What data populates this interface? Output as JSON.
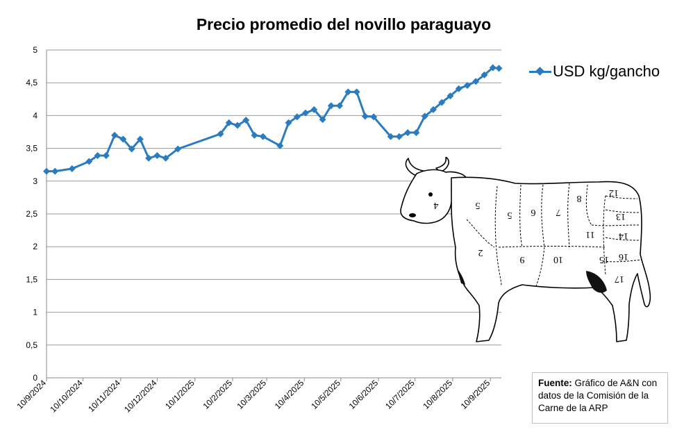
{
  "chart_data": {
    "type": "line",
    "title": "Precio promedio del novillo paraguayo",
    "xlabel": "",
    "ylabel": "",
    "ylim": [
      0,
      5
    ],
    "y_ticks": [
      "0",
      "0,5",
      "1",
      "1,5",
      "2",
      "2,5",
      "3",
      "3,5",
      "4",
      "4,5",
      "5"
    ],
    "x_ticks": [
      "10/9/2024",
      "10/10/2024",
      "10/11/2024",
      "10/12/2024",
      "10/1/2025",
      "10/2/2025",
      "10/3/2025",
      "10/4/2025",
      "10/5/2025",
      "10/6/2025",
      "10/7/2025",
      "10/8/2025",
      "10/9/2025"
    ],
    "grid": "horizontal",
    "legend_position": "right",
    "color": "#2a7bbf",
    "series": [
      {
        "name": "USD kg/gancho",
        "points": [
          [
            "2024-09-10",
            3.15
          ],
          [
            "2024-09-17",
            3.15
          ],
          [
            "2024-10-01",
            3.19
          ],
          [
            "2024-10-15",
            3.3
          ],
          [
            "2024-10-22",
            3.39
          ],
          [
            "2024-10-29",
            3.39
          ],
          [
            "2024-11-05",
            3.7
          ],
          [
            "2024-11-12",
            3.64
          ],
          [
            "2024-11-19",
            3.49
          ],
          [
            "2024-11-26",
            3.64
          ],
          [
            "2024-12-03",
            3.35
          ],
          [
            "2024-12-10",
            3.39
          ],
          [
            "2024-12-17",
            3.35
          ],
          [
            "2024-12-27",
            3.49
          ],
          [
            "2025-01-31",
            3.72
          ],
          [
            "2025-02-07",
            3.89
          ],
          [
            "2025-02-14",
            3.85
          ],
          [
            "2025-02-21",
            3.93
          ],
          [
            "2025-02-28",
            3.7
          ],
          [
            "2025-03-07",
            3.68
          ],
          [
            "2025-03-21",
            3.54
          ],
          [
            "2025-03-28",
            3.89
          ],
          [
            "2025-04-04",
            3.98
          ],
          [
            "2025-04-11",
            4.04
          ],
          [
            "2025-04-18",
            4.09
          ],
          [
            "2025-04-25",
            3.94
          ],
          [
            "2025-05-02",
            4.15
          ],
          [
            "2025-05-09",
            4.15
          ],
          [
            "2025-05-16",
            4.36
          ],
          [
            "2025-05-23",
            4.36
          ],
          [
            "2025-05-30",
            3.99
          ],
          [
            "2025-06-06",
            3.98
          ],
          [
            "2025-06-20",
            3.68
          ],
          [
            "2025-06-27",
            3.68
          ],
          [
            "2025-07-04",
            3.74
          ],
          [
            "2025-07-11",
            3.74
          ],
          [
            "2025-07-18",
            3.99
          ],
          [
            "2025-07-25",
            4.09
          ],
          [
            "2025-08-01",
            4.2
          ],
          [
            "2025-08-08",
            4.3
          ],
          [
            "2025-08-15",
            4.41
          ],
          [
            "2025-08-22",
            4.46
          ],
          [
            "2025-08-29",
            4.52
          ],
          [
            "2025-09-05",
            4.62
          ],
          [
            "2025-09-12",
            4.73
          ],
          [
            "2025-09-17",
            4.72
          ]
        ]
      }
    ]
  },
  "legend": {
    "label": "USD kg/gancho"
  },
  "source": {
    "label": "Fuente:",
    "text": "Gráfico de A&N con datos de la Comisión de la Carne de la ARP"
  },
  "cow_cut_numbers": [
    "4",
    "5",
    "5",
    "6",
    "7",
    "8",
    "12",
    "2",
    "9",
    "10",
    "11",
    "13",
    "14",
    "15",
    "16",
    "17"
  ]
}
